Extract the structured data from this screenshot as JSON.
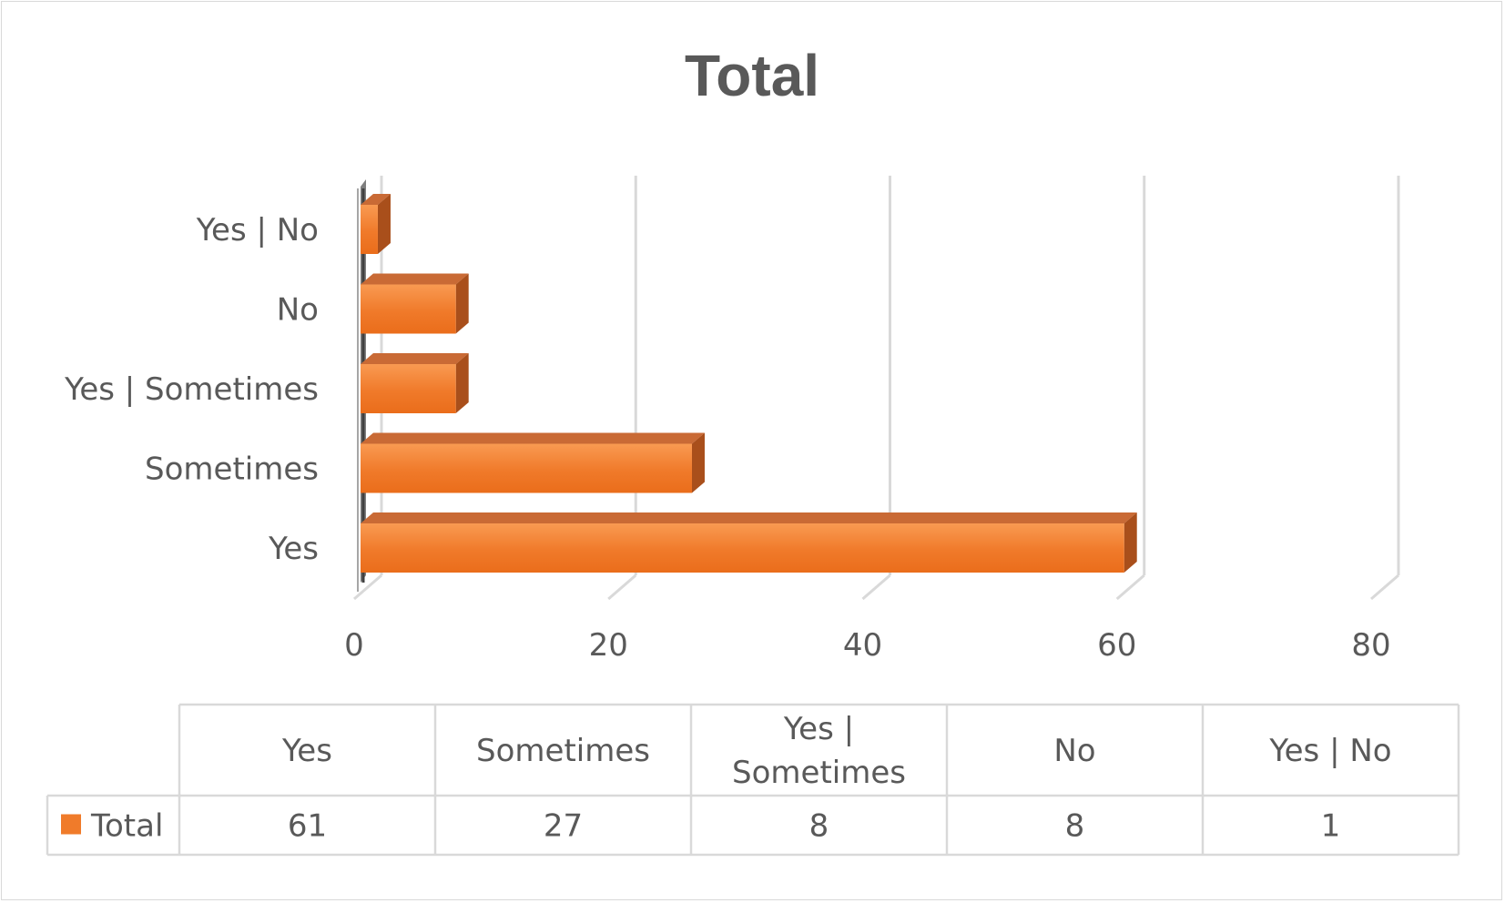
{
  "chart_data": {
    "type": "bar",
    "orientation": "horizontal",
    "style": "3d",
    "title": "Total",
    "categories": [
      "Yes",
      "Sometimes",
      "Yes | Sometimes",
      "No",
      "Yes | No"
    ],
    "series": [
      {
        "name": "Total",
        "values": [
          61,
          27,
          8,
          8,
          1
        ],
        "color": "#f07b2a"
      }
    ],
    "xlim": [
      0,
      80
    ],
    "x_ticks": [
      "0",
      "20",
      "40",
      "60",
      "80"
    ],
    "grid": true,
    "legend": "data-table",
    "data_table": {
      "headers": [
        "Yes",
        "Sometimes",
        "Yes | Sometimes",
        "No",
        "Yes | No"
      ],
      "rows": [
        {
          "label": "Total",
          "values": [
            "61",
            "27",
            "8",
            "8",
            "1"
          ]
        }
      ]
    }
  }
}
